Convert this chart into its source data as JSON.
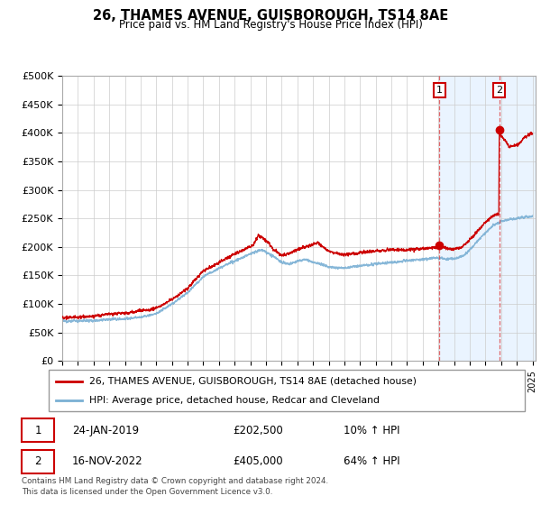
{
  "title": "26, THAMES AVENUE, GUISBOROUGH, TS14 8AE",
  "subtitle": "Price paid vs. HM Land Registry's House Price Index (HPI)",
  "ylabel_ticks": [
    "£0",
    "£50K",
    "£100K",
    "£150K",
    "£200K",
    "£250K",
    "£300K",
    "£350K",
    "£400K",
    "£450K",
    "£500K"
  ],
  "ytick_values": [
    0,
    50000,
    100000,
    150000,
    200000,
    250000,
    300000,
    350000,
    400000,
    450000,
    500000
  ],
  "ylim": [
    0,
    500000
  ],
  "xmin": 1995.0,
  "xmax": 2025.2,
  "vline1_x": 2019.07,
  "vline2_x": 2022.88,
  "sale1_price": 202500,
  "sale2_price": 405000,
  "legend_label_red": "26, THAMES AVENUE, GUISBOROUGH, TS14 8AE (detached house)",
  "legend_label_blue": "HPI: Average price, detached house, Redcar and Cleveland",
  "table_row1": [
    "1",
    "24-JAN-2019",
    "£202,500",
    "10% ↑ HPI"
  ],
  "table_row2": [
    "2",
    "16-NOV-2022",
    "£405,000",
    "64% ↑ HPI"
  ],
  "footnote": "Contains HM Land Registry data © Crown copyright and database right 2024.\nThis data is licensed under the Open Government Licence v3.0.",
  "red_color": "#cc0000",
  "blue_color": "#7ab0d4",
  "vline_color": "#dd4444",
  "bg_highlight_color": "#ddeeff",
  "grid_color": "#cccccc"
}
